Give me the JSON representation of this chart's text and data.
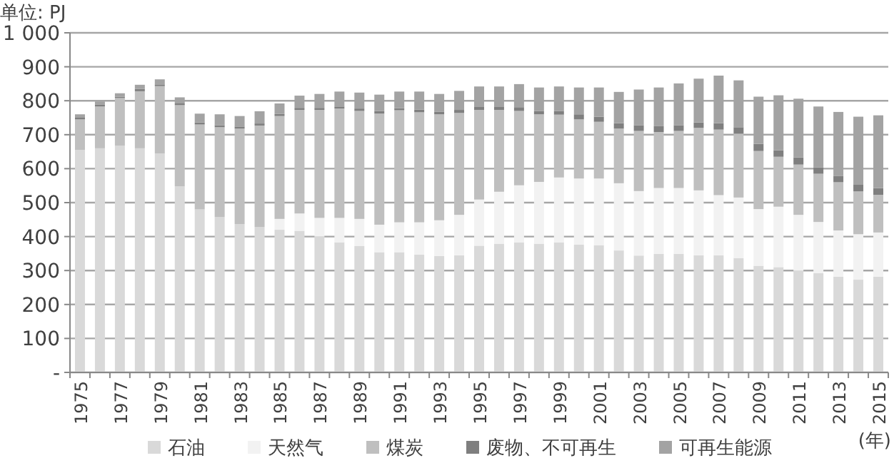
{
  "chart_data": {
    "type": "bar",
    "stacked": true,
    "ylabel": "单位: PJ",
    "xlabel": "(年)",
    "grid": "y",
    "legend": "bottom",
    "categories": [
      "1975",
      null,
      "1977",
      null,
      "1979",
      null,
      "1981",
      null,
      "1983",
      null,
      "1985",
      null,
      "1987",
      null,
      "1989",
      null,
      "1991",
      null,
      "1993",
      null,
      "1995",
      null,
      "1997",
      null,
      "1999",
      null,
      "2001",
      null,
      "2003",
      null,
      "2005",
      null,
      "2007",
      null,
      "2009",
      null,
      "2011",
      null,
      "2013",
      null,
      "2015"
    ],
    "ylim": [
      0,
      1000
    ],
    "yticks": [
      {
        "value": 0,
        "label": "-"
      },
      100,
      200,
      300,
      400,
      500,
      600,
      700,
      800,
      900,
      {
        "value": 1000,
        "label": "1 000"
      }
    ],
    "series": [
      {
        "name": "石油",
        "color": "#d9d9d9",
        "values": [
          655,
          660,
          668,
          660,
          645,
          548,
          480,
          458,
          437,
          428,
          420,
          417,
          400,
          383,
          372,
          354,
          354,
          347,
          343,
          345,
          373,
          379,
          383,
          379,
          383,
          376,
          374,
          359,
          344,
          349,
          349,
          345,
          345,
          337,
          314,
          310,
          299,
          292,
          282,
          273,
          282
        ]
      },
      {
        "name": "天然气",
        "color": "#f2f2f2",
        "values": [
          0,
          0,
          0,
          0,
          0,
          0,
          0,
          0,
          0,
          0,
          32,
          51,
          55,
          72,
          80,
          81,
          88,
          95,
          105,
          119,
          136,
          153,
          168,
          182,
          191,
          195,
          197,
          198,
          190,
          194,
          194,
          191,
          177,
          178,
          167,
          178,
          165,
          151,
          136,
          134,
          130
        ]
      },
      {
        "name": "煤炭",
        "color": "#bfbfbf",
        "values": [
          90,
          123,
          140,
          168,
          198,
          239,
          250,
          264,
          281,
          299,
          303,
          305,
          318,
          322,
          318,
          327,
          330,
          324,
          312,
          300,
          264,
          241,
          219,
          199,
          185,
          174,
          167,
          161,
          177,
          165,
          168,
          184,
          193,
          188,
          171,
          147,
          148,
          142,
          142,
          126,
          111
        ]
      },
      {
        "name": "废物、不可再生",
        "color": "#7f7f7f",
        "values": [
          5,
          5,
          4,
          7,
          5,
          5,
          6,
          6,
          6,
          6,
          6,
          6,
          6,
          6,
          7,
          8,
          6,
          8,
          8,
          9,
          10,
          10,
          11,
          10,
          11,
          15,
          15,
          16,
          17,
          17,
          17,
          16,
          19,
          19,
          21,
          19,
          21,
          19,
          18,
          21,
          20
        ]
      },
      {
        "name": "可再生能源",
        "color": "#a3a3a3",
        "values": [
          10,
          10,
          10,
          12,
          15,
          18,
          26,
          32,
          31,
          36,
          31,
          36,
          41,
          44,
          47,
          48,
          49,
          53,
          52,
          56,
          59,
          59,
          68,
          69,
          72,
          79,
          86,
          92,
          105,
          114,
          123,
          129,
          140,
          138,
          139,
          162,
          173,
          179,
          189,
          199,
          214
        ]
      }
    ]
  }
}
